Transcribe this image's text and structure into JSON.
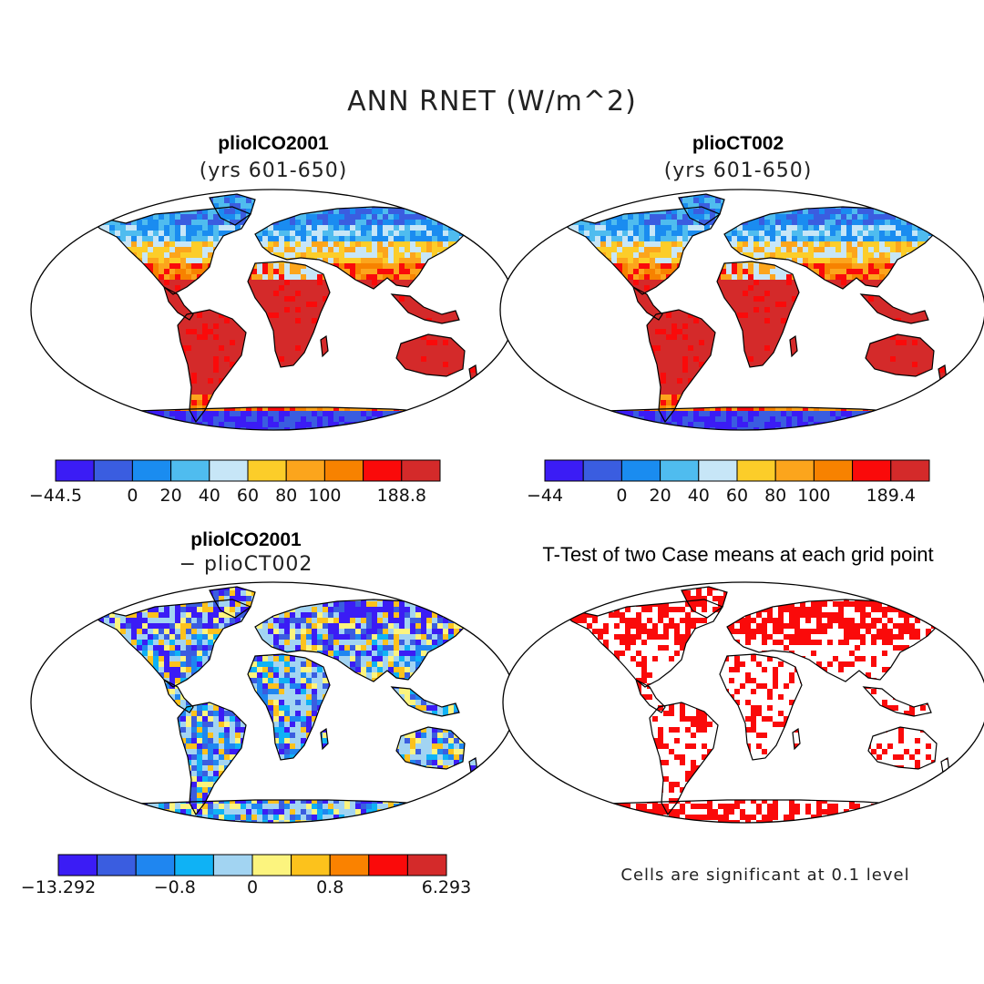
{
  "figure": {
    "title": "ANN RNET (W/m^2)",
    "note": "Cells are significant at 0.1 level"
  },
  "panels": {
    "case1": {
      "title": "pliolCO2001",
      "subtitle": "(yrs 601-650)"
    },
    "case2": {
      "title": "plioCT002",
      "subtitle": "(yrs 601-650)"
    },
    "diff": {
      "title": "pliolCO2001",
      "subtitle": "− plioCT002"
    },
    "ttest": {
      "title": "T-Test of two Case means at each grid point"
    }
  },
  "colorbars": {
    "case1": {
      "colors": [
        "#3b1cf5",
        "#3a5de0",
        "#1a8cf0",
        "#4fbcef",
        "#c7e6f7",
        "#fccd29",
        "#fca51c",
        "#f78200",
        "#fa0a0a",
        "#d42a2a"
      ],
      "labels": [
        "−44.5",
        "0",
        "20",
        "40",
        "60",
        "80",
        "100",
        "188.8"
      ],
      "label_slots": [
        0,
        2,
        3,
        4,
        5,
        6,
        7,
        9
      ]
    },
    "case2": {
      "colors": [
        "#3b1cf5",
        "#3a5de0",
        "#1a8cf0",
        "#4fbcef",
        "#c7e6f7",
        "#fccd29",
        "#fca51c",
        "#f78200",
        "#fa0a0a",
        "#d42a2a"
      ],
      "labels": [
        "−44",
        "0",
        "20",
        "40",
        "60",
        "80",
        "100",
        "189.4"
      ],
      "label_slots": [
        0,
        2,
        3,
        4,
        5,
        6,
        7,
        9
      ]
    },
    "diff": {
      "colors": [
        "#3b1cf5",
        "#3a5de0",
        "#1f86f0",
        "#0fb2f5",
        "#a2d4f2",
        "#fcf47e",
        "#fcc21c",
        "#fa8200",
        "#fa0a0a",
        "#d42a2a"
      ],
      "labels": [
        "−13.292",
        "−0.8",
        "0",
        "0.8",
        "6.293"
      ],
      "label_slots": [
        0,
        3,
        5,
        7,
        10
      ]
    }
  }
}
